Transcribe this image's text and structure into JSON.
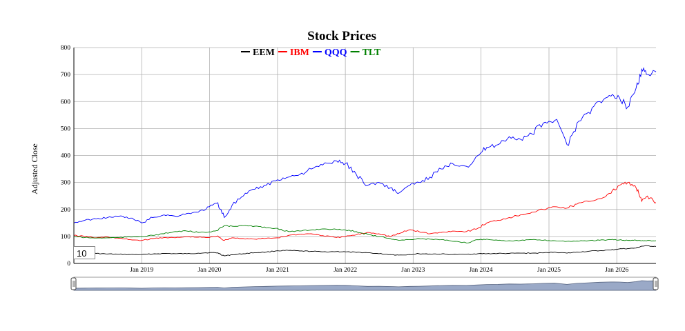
{
  "rollPeriod": "10",
  "chart_data": {
    "type": "line",
    "title": "Stock Prices",
    "xlabel": "",
    "ylabel": "Adjusted Close",
    "ylim": [
      0,
      800
    ],
    "xlim": [
      "2018-01-01",
      "2026-07-31"
    ],
    "yticks": [
      "0",
      "100",
      "200",
      "300",
      "400",
      "500",
      "600",
      "700",
      "800"
    ],
    "xticks": [
      {
        "date": "2019-01-01",
        "label": "Jan 2019"
      },
      {
        "date": "2020-01-01",
        "label": "Jan 2020"
      },
      {
        "date": "2021-01-01",
        "label": "Jan 2021"
      },
      {
        "date": "2022-01-01",
        "label": "Jan 2022"
      },
      {
        "date": "2023-01-01",
        "label": "Jan 2023"
      },
      {
        "date": "2024-01-01",
        "label": "Jan 2024"
      },
      {
        "date": "2025-01-01",
        "label": "Jan 2025"
      },
      {
        "date": "2026-01-01",
        "label": "Jan 2026"
      }
    ],
    "grid": true,
    "legend_position": "top-center",
    "x": [
      "2018-01-01",
      "2018-03-01",
      "2018-05-01",
      "2018-07-01",
      "2018-09-01",
      "2018-11-01",
      "2019-01-01",
      "2019-03-01",
      "2019-05-01",
      "2019-07-01",
      "2019-09-01",
      "2019-11-01",
      "2020-01-01",
      "2020-02-15",
      "2020-03-20",
      "2020-05-01",
      "2020-07-01",
      "2020-09-01",
      "2020-11-01",
      "2021-01-01",
      "2021-03-01",
      "2021-05-01",
      "2021-07-01",
      "2021-09-01",
      "2021-11-15",
      "2022-01-01",
      "2022-03-01",
      "2022-05-01",
      "2022-07-01",
      "2022-09-01",
      "2022-10-15",
      "2022-12-15",
      "2023-02-01",
      "2023-04-01",
      "2023-06-01",
      "2023-08-01",
      "2023-10-15",
      "2023-12-15",
      "2024-02-01",
      "2024-04-01",
      "2024-06-01",
      "2024-08-01",
      "2024-10-01",
      "2024-12-01",
      "2025-02-01",
      "2025-04-08",
      "2025-06-01",
      "2025-08-01",
      "2025-10-01",
      "2025-12-01",
      "2026-01-15",
      "2026-03-01",
      "2026-04-15",
      "2026-05-15",
      "2026-06-15",
      "2026-07-31"
    ],
    "series": [
      {
        "name": "EEM",
        "color": "#000000",
        "values": [
          38,
          39,
          37,
          35,
          34,
          33,
          33,
          35,
          37,
          36,
          36,
          38,
          40,
          39,
          28,
          32,
          36,
          40,
          42,
          47,
          48,
          46,
          45,
          43,
          44,
          43,
          41,
          40,
          36,
          33,
          31,
          33,
          36,
          35,
          35,
          33,
          34,
          36,
          36,
          37,
          37,
          38,
          38,
          39,
          42,
          38,
          42,
          45,
          47,
          50,
          54,
          55,
          57,
          64,
          65,
          63
        ]
      },
      {
        "name": "IBM",
        "color": "#ff0000",
        "values": [
          104,
          100,
          95,
          98,
          93,
          88,
          85,
          92,
          96,
          95,
          99,
          97,
          96,
          102,
          85,
          95,
          92,
          90,
          93,
          95,
          104,
          108,
          110,
          103,
          96,
          100,
          106,
          115,
          110,
          100,
          110,
          125,
          118,
          110,
          115,
          120,
          118,
          130,
          150,
          160,
          170,
          180,
          190,
          200,
          210,
          205,
          220,
          230,
          240,
          260,
          290,
          300,
          280,
          230,
          250,
          225
        ]
      },
      {
        "name": "QQQ",
        "color": "#0000ff",
        "values": [
          150,
          160,
          165,
          170,
          175,
          168,
          150,
          170,
          180,
          175,
          185,
          190,
          210,
          225,
          170,
          215,
          250,
          275,
          290,
          310,
          320,
          330,
          350,
          365,
          380,
          370,
          330,
          290,
          300,
          280,
          260,
          290,
          300,
          320,
          350,
          370,
          360,
          400,
          430,
          440,
          470,
          460,
          480,
          520,
          530,
          440,
          520,
          560,
          600,
          620,
          615,
          580,
          650,
          720,
          700,
          710
        ]
      },
      {
        "name": "TLT",
        "color": "#008000",
        "values": [
          100,
          96,
          94,
          95,
          96,
          98,
          100,
          104,
          110,
          118,
          120,
          115,
          117,
          122,
          140,
          138,
          140,
          138,
          132,
          130,
          118,
          120,
          124,
          128,
          126,
          124,
          118,
          108,
          100,
          92,
          86,
          88,
          92,
          90,
          88,
          82,
          76,
          88,
          90,
          86,
          84,
          85,
          88,
          86,
          84,
          82,
          83,
          84,
          86,
          88,
          87,
          85,
          86,
          84,
          85,
          84
        ]
      }
    ]
  }
}
